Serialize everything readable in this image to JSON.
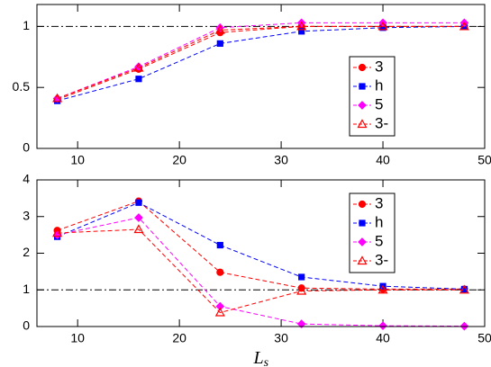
{
  "chart_data": [
    {
      "type": "line",
      "xlim": [
        6,
        50
      ],
      "xticks": [
        10,
        20,
        30,
        40,
        50
      ],
      "ylim": [
        0,
        1.18
      ],
      "yticks": [
        0,
        0.5,
        1
      ],
      "reference_line": 1,
      "x": [
        8,
        16,
        24,
        32,
        40,
        48
      ],
      "series": [
        {
          "name": "3",
          "color": "#ff0000",
          "marker": "circle",
          "values": [
            0.4,
            0.65,
            0.95,
            1.0,
            1.0,
            1.0
          ]
        },
        {
          "name": "h",
          "color": "#0000ff",
          "marker": "square",
          "values": [
            0.39,
            0.57,
            0.86,
            0.96,
            0.99,
            1.0
          ]
        },
        {
          "name": "5",
          "color": "#ff00ff",
          "marker": "diamond",
          "values": [
            0.41,
            0.67,
            0.99,
            1.03,
            1.03,
            1.03
          ]
        },
        {
          "name": "3-",
          "color": "#ff0000",
          "marker": "triangle",
          "values": [
            0.41,
            0.66,
            0.97,
            1.0,
            1.0,
            1.0
          ]
        }
      ]
    },
    {
      "type": "line",
      "xlim": [
        6,
        50
      ],
      "xticks": [
        10,
        20,
        30,
        40,
        50
      ],
      "ylim": [
        0,
        4
      ],
      "yticks": [
        0,
        1,
        2,
        3,
        4
      ],
      "reference_line": 1,
      "x": [
        8,
        16,
        24,
        32,
        40,
        48
      ],
      "xlabel": {
        "main": "L",
        "sub": "s"
      },
      "series": [
        {
          "name": "3",
          "color": "#ff0000",
          "marker": "circle",
          "values": [
            2.62,
            3.42,
            1.48,
            1.05,
            1.02,
            1.02
          ]
        },
        {
          "name": "h",
          "color": "#0000ff",
          "marker": "square",
          "values": [
            2.45,
            3.38,
            2.22,
            1.35,
            1.1,
            1.02
          ]
        },
        {
          "name": "5",
          "color": "#ff00ff",
          "marker": "diamond",
          "values": [
            2.5,
            2.97,
            0.55,
            0.07,
            0.02,
            0.01
          ]
        },
        {
          "name": "3-",
          "color": "#ff0000",
          "marker": "triangle",
          "values": [
            2.55,
            2.65,
            0.38,
            0.97,
            1.0,
            1.0
          ]
        }
      ]
    }
  ]
}
